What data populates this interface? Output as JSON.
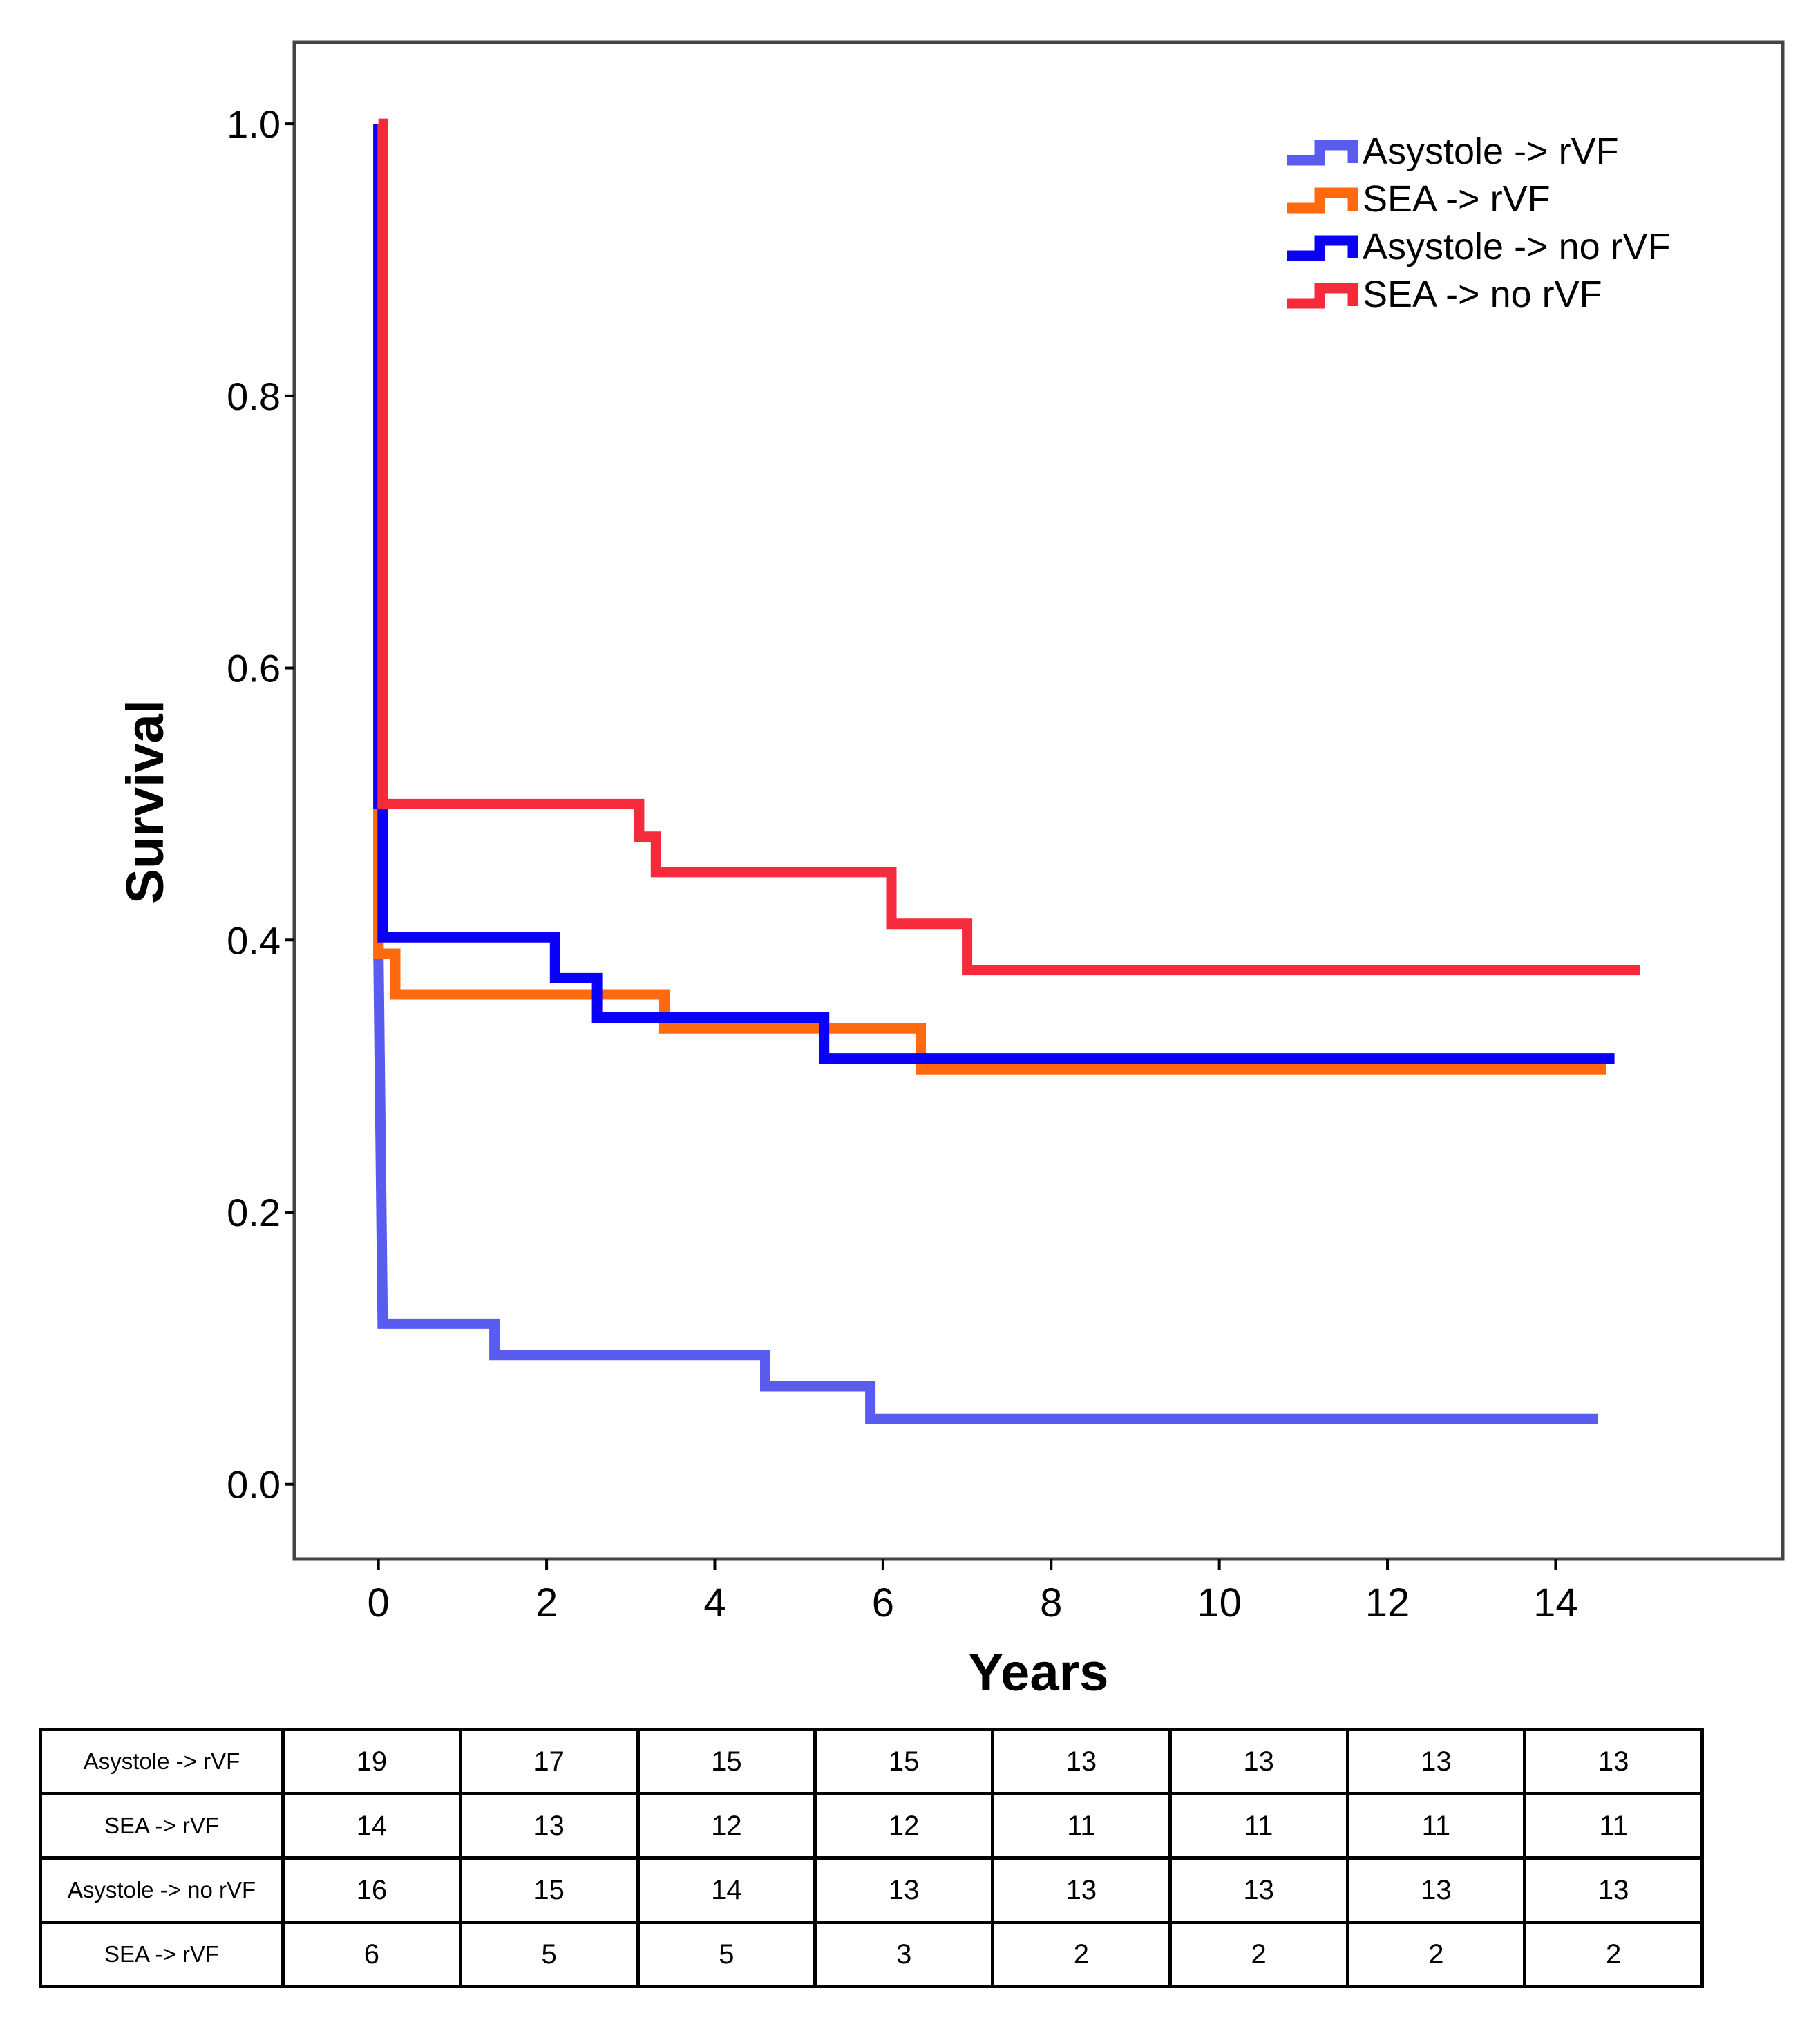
{
  "chart_data": {
    "type": "line",
    "step": true,
    "xlabel": "Years",
    "ylabel": "Survival",
    "xlim": [
      -1,
      16.7
    ],
    "ylim": [
      -0.055,
      1.06
    ],
    "xticks": [
      "0",
      "2",
      "4",
      "6",
      "8",
      "10",
      "12",
      "14"
    ],
    "yticks": [
      "0.0",
      "0.2",
      "0.4",
      "0.6",
      "0.8",
      "1.0"
    ],
    "legend_position": "top-right",
    "series": [
      {
        "name": "Asystole -> rVF",
        "color": "#5a5cf0",
        "points": [
          [
            0,
            1.0
          ],
          [
            0,
            0.39
          ],
          [
            0.05,
            0.118
          ],
          [
            1.38,
            0.118
          ],
          [
            1.38,
            0.095
          ],
          [
            4.6,
            0.095
          ],
          [
            4.6,
            0.072
          ],
          [
            5.85,
            0.072
          ],
          [
            5.85,
            0.048
          ],
          [
            14.5,
            0.048
          ]
        ]
      },
      {
        "name": "SEA -> rVF",
        "color": "#ff6a10",
        "points": [
          [
            0,
            1.0
          ],
          [
            0,
            0.39
          ],
          [
            0.2,
            0.39
          ],
          [
            0.2,
            0.36
          ],
          [
            3.4,
            0.36
          ],
          [
            3.4,
            0.335
          ],
          [
            6.45,
            0.335
          ],
          [
            6.45,
            0.305
          ],
          [
            14.6,
            0.305
          ]
        ]
      },
      {
        "name": "Asystole -> no rVF",
        "color": "#0a00f5",
        "points": [
          [
            0,
            1.0
          ],
          [
            0,
            0.5
          ],
          [
            0.05,
            0.5
          ],
          [
            0.05,
            0.402
          ],
          [
            2.1,
            0.402
          ],
          [
            2.1,
            0.372
          ],
          [
            2.6,
            0.372
          ],
          [
            2.6,
            0.343
          ],
          [
            5.3,
            0.343
          ],
          [
            5.3,
            0.313
          ],
          [
            14.7,
            0.313
          ]
        ]
      },
      {
        "name": "SEA -> no rVF",
        "color": "#f52a3a",
        "points": [
          [
            0,
            1.0
          ],
          [
            0.05,
            1.0
          ],
          [
            0.05,
            0.5
          ],
          [
            3.1,
            0.5
          ],
          [
            3.1,
            0.476
          ],
          [
            3.3,
            0.476
          ],
          [
            3.3,
            0.45
          ],
          [
            6.1,
            0.45
          ],
          [
            6.1,
            0.412
          ],
          [
            7.0,
            0.412
          ],
          [
            7.0,
            0.378
          ],
          [
            15.0,
            0.378
          ]
        ]
      }
    ]
  },
  "risk_table": {
    "rows": [
      {
        "label": "Asystole -> rVF",
        "values": [
          "19",
          "17",
          "15",
          "15",
          "13",
          "13",
          "13",
          "13"
        ]
      },
      {
        "label": "SEA -> rVF",
        "values": [
          "14",
          "13",
          "12",
          "12",
          "11",
          "11",
          "11",
          "11"
        ]
      },
      {
        "label": "Asystole -> no rVF",
        "values": [
          "16",
          "15",
          "14",
          "13",
          "13",
          "13",
          "13",
          "13"
        ]
      },
      {
        "label": "SEA -> rVF",
        "values": [
          "6",
          "5",
          "5",
          "3",
          "2",
          "2",
          "2",
          "2"
        ]
      }
    ]
  }
}
